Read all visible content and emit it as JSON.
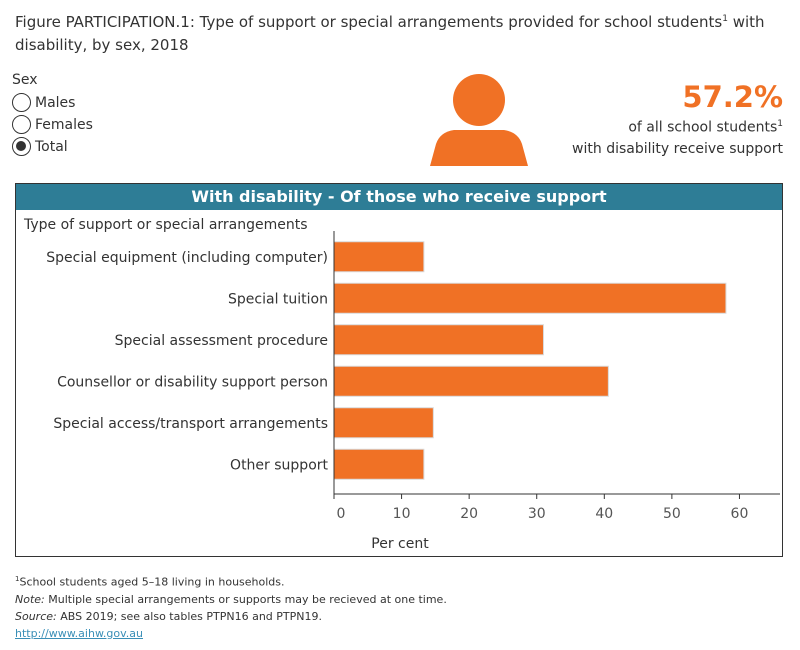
{
  "title": {
    "text": "Figure PARTICIPATION.1: Type of support or special arrangements provided for school students",
    "sup": "1",
    "rest": " with disability, by sex, 2018"
  },
  "filter": {
    "label": "Sex",
    "options": [
      "Males",
      "Females",
      "Total"
    ],
    "selected": "Total"
  },
  "kpi": {
    "value": "57.2%",
    "line1": "of all school students",
    "sup": "1",
    "line2": "with disability receive support",
    "icon": "person-icon"
  },
  "colors": {
    "accent": "#f07125",
    "header": "#2e7d96"
  },
  "panel": {
    "header": "With disability - Of those who receive support"
  },
  "chart_data": {
    "type": "bar",
    "orientation": "horizontal",
    "title": "With disability - Of those who receive support",
    "ylabel": "Type of support or special arrangements",
    "xlabel": "Per cent",
    "categories": [
      "Special equipment (including computer)",
      "Special tuition",
      "Special assessment procedure",
      "Counsellor or disability support person",
      "Special access/transport arrangements",
      "Other support"
    ],
    "values": [
      13.3,
      58.0,
      31.0,
      40.6,
      14.7,
      13.3
    ],
    "xlim": [
      0,
      66
    ],
    "xticks": [
      0,
      10,
      20,
      30,
      40,
      50,
      60
    ],
    "grid": false
  },
  "footer": {
    "note1": "School students aged 5–18 living in households.",
    "note1_sup": "1",
    "note_label": "Note:",
    "note": " Multiple special arrangements or supports may be recieved at one time.",
    "source_label": "Source:",
    "source": " ABS 2019; see also tables PTPN16 and PTPN19.",
    "link": "http://www.aihw.gov.au"
  }
}
